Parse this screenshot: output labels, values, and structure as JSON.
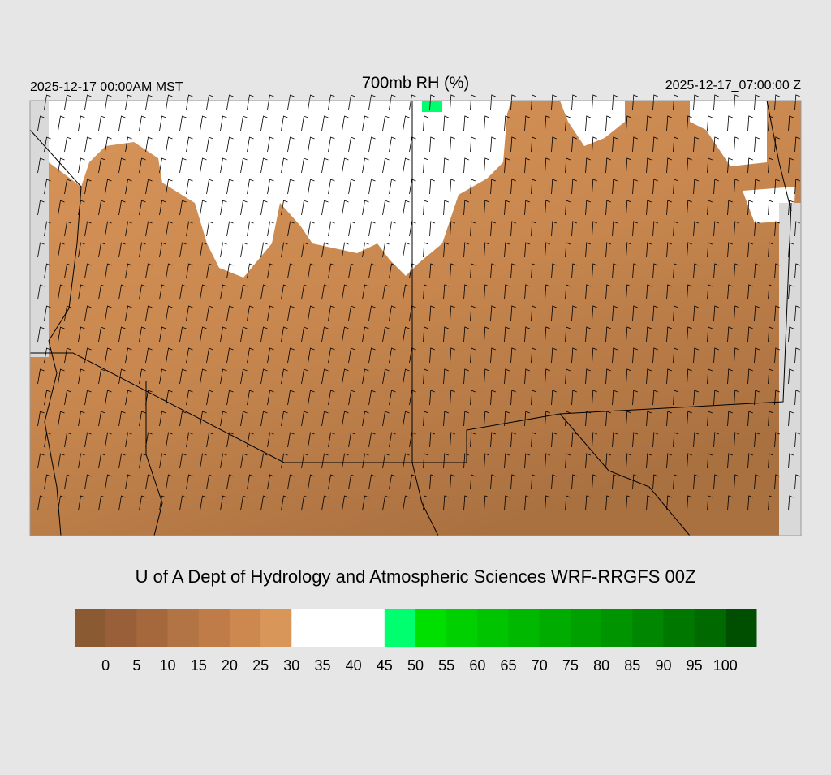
{
  "header": {
    "left": "2025-12-17 00:00AM MST",
    "title": "700mb RH (%)",
    "right": "2025-12-17_07:00:00 Z"
  },
  "credit": "U of A Dept of Hydrology and Atmospheric Sciences WRF-RRGFS 00Z",
  "colorbar": {
    "colors": [
      "#8a5a33",
      "#985f38",
      "#a5683c",
      "#b27444",
      "#c07c48",
      "#cd884f",
      "#d99659",
      "#ffffff",
      "#ffffff",
      "#ffffff",
      "#00ff6e",
      "#00e000",
      "#00d000",
      "#00c400",
      "#00b800",
      "#00ac00",
      "#00a000",
      "#009400",
      "#008600",
      "#007800",
      "#006a00",
      "#004f00"
    ],
    "labels": [
      "0",
      "5",
      "10",
      "15",
      "20",
      "25",
      "30",
      "35",
      "40",
      "45",
      "50",
      "55",
      "60",
      "65",
      "70",
      "75",
      "80",
      "85",
      "90",
      "95",
      "100"
    ]
  }
}
